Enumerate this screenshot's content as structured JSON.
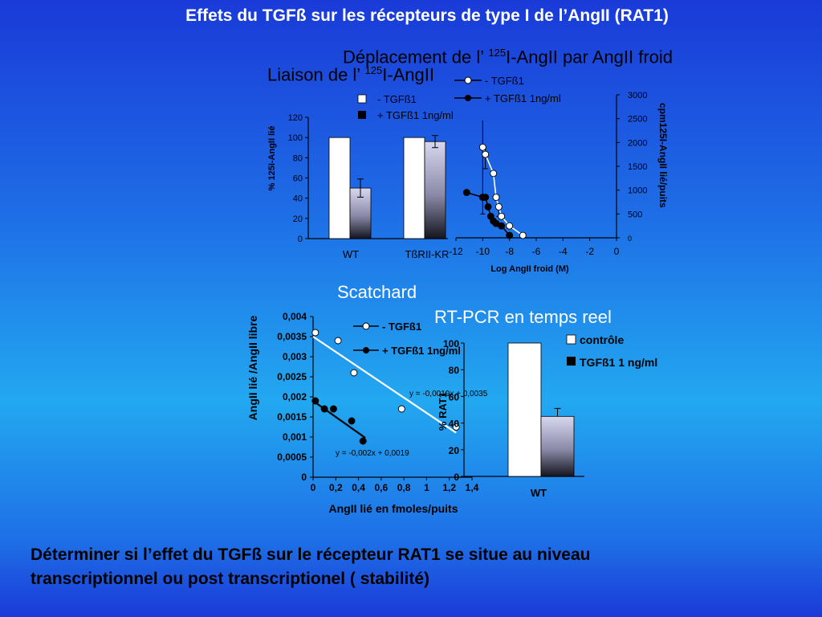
{
  "slide": {
    "title": "Effets du TGFß sur les récepteurs de type I de l’AngII (RAT1)",
    "bottom_line1": "Déterminer si l’effet du TGFß sur le récepteur RAT1 se situe au niveau",
    "bottom_line2": "transcriptionnel ou post transcriptionel ( stabilité)"
  },
  "labels": {
    "liaison_pre": "Liaison de l’ ",
    "liaison_sup": "125",
    "liaison_post": "I-AngII",
    "deplacement_pre": "Déplacement de l’ ",
    "deplacement_sup": "125",
    "deplacement_post": "I-AngII par AngII froid",
    "scatchard": "Scatchard",
    "rtpcr": "RT-PCR en temps reel"
  },
  "colors": {
    "title": "#ffffff",
    "bar_control": "#ffffff",
    "bar_tgf_gradient_top": "#d8d8f0",
    "bar_tgf_gradient_bottom": "#1a1a2a"
  },
  "chart_data": [
    {
      "id": "liaison",
      "type": "bar",
      "categories": [
        "WT",
        "TßRII-KR"
      ],
      "series": [
        {
          "name": "- TGFß1",
          "values": [
            100,
            100
          ]
        },
        {
          "name": "+ TGFß1 1ng/ml",
          "values": [
            50,
            96
          ]
        }
      ],
      "errors": [
        [
          0,
          0
        ],
        [
          9,
          6
        ]
      ],
      "ylabel": "% 125I-AngII lié",
      "ylim": [
        0,
        120
      ],
      "yticks": [
        0,
        20,
        40,
        60,
        80,
        100,
        120
      ]
    },
    {
      "id": "deplacement",
      "type": "line",
      "series": [
        {
          "name": "- TGFß1",
          "x": [
            -10,
            -9.8,
            -9.2,
            -9,
            -8.8,
            -8.6,
            -8,
            -7
          ],
          "y": [
            1900,
            1750,
            1350,
            850,
            650,
            450,
            250,
            50
          ]
        },
        {
          "name": "+ TGFß1 1ng/ml",
          "x": [
            -11.2,
            -10,
            -9.8,
            -9.6,
            -9.4,
            -9.2,
            -9,
            -8.6,
            -8
          ],
          "y": [
            950,
            850,
            850,
            650,
            450,
            350,
            300,
            250,
            50
          ]
        }
      ],
      "errors_minus": [
        1400,
        300,
        0,
        0,
        200,
        0,
        0,
        0
      ],
      "xlabel": "Log AngII froid (M)",
      "xticks": [
        -12,
        -10,
        -8,
        -6,
        -4,
        -2,
        0
      ],
      "xlim": [
        -12,
        0
      ],
      "ylabel": "cpm125I-AngII lié/puits",
      "ylim": [
        0,
        3000
      ],
      "yticks": [
        0,
        500,
        1000,
        1500,
        2000,
        2500,
        3000
      ]
    },
    {
      "id": "scatchard",
      "type": "scatter",
      "series": [
        {
          "name": "- TGFß1",
          "x": [
            0.02,
            0.22,
            0.36,
            0.78,
            1.26
          ],
          "y": [
            0.0036,
            0.0034,
            0.0026,
            0.0017,
            0.00125
          ],
          "fit": "y = -0,0019x + 0,0035",
          "fit_slope": -0.0019,
          "fit_intercept": 0.0035,
          "fit_x": [
            0,
            1.26
          ]
        },
        {
          "name": "+ TGFß1 1ng/ml",
          "x": [
            0.02,
            0.1,
            0.18,
            0.34,
            0.44
          ],
          "y": [
            0.0019,
            0.0017,
            0.0017,
            0.0014,
            0.0009
          ],
          "fit": "y = -0,002x + 0,0019",
          "fit_slope": -0.002,
          "fit_intercept": 0.0019,
          "fit_x": [
            0,
            0.46
          ]
        }
      ],
      "xlabel": "AngII lié en fmoles/puits",
      "xticks": [
        "0",
        "0,2",
        "0,4",
        "0,6",
        "0,8",
        "1",
        "1,2",
        "1,4"
      ],
      "xtick_values": [
        0,
        0.2,
        0.4,
        0.6,
        0.8,
        1,
        1.2,
        1.4
      ],
      "xlim": [
        0,
        1.4
      ],
      "ylabel": "AngII lié /AngII libre",
      "yticks": [
        "0",
        "0,0005",
        "0,001",
        "0,0015",
        "0,002",
        "0,0025",
        "0,003",
        "0,0035",
        "0,004"
      ],
      "ytick_values": [
        0,
        0.0005,
        0.001,
        0.0015,
        0.002,
        0.0025,
        0.003,
        0.0035,
        0.004
      ],
      "ylim": [
        0,
        0.004
      ]
    },
    {
      "id": "rtpcr",
      "type": "bar",
      "categories": [
        "WT"
      ],
      "series": [
        {
          "name": "contrôle",
          "values": [
            100
          ]
        },
        {
          "name": "TGFß1 1 ng/ml",
          "values": [
            45
          ]
        }
      ],
      "errors": [
        [
          0
        ],
        [
          6
        ]
      ],
      "ylabel": "% RAT1",
      "ylim": [
        0,
        100
      ],
      "yticks": [
        0,
        20,
        40,
        60,
        80,
        100
      ]
    }
  ]
}
